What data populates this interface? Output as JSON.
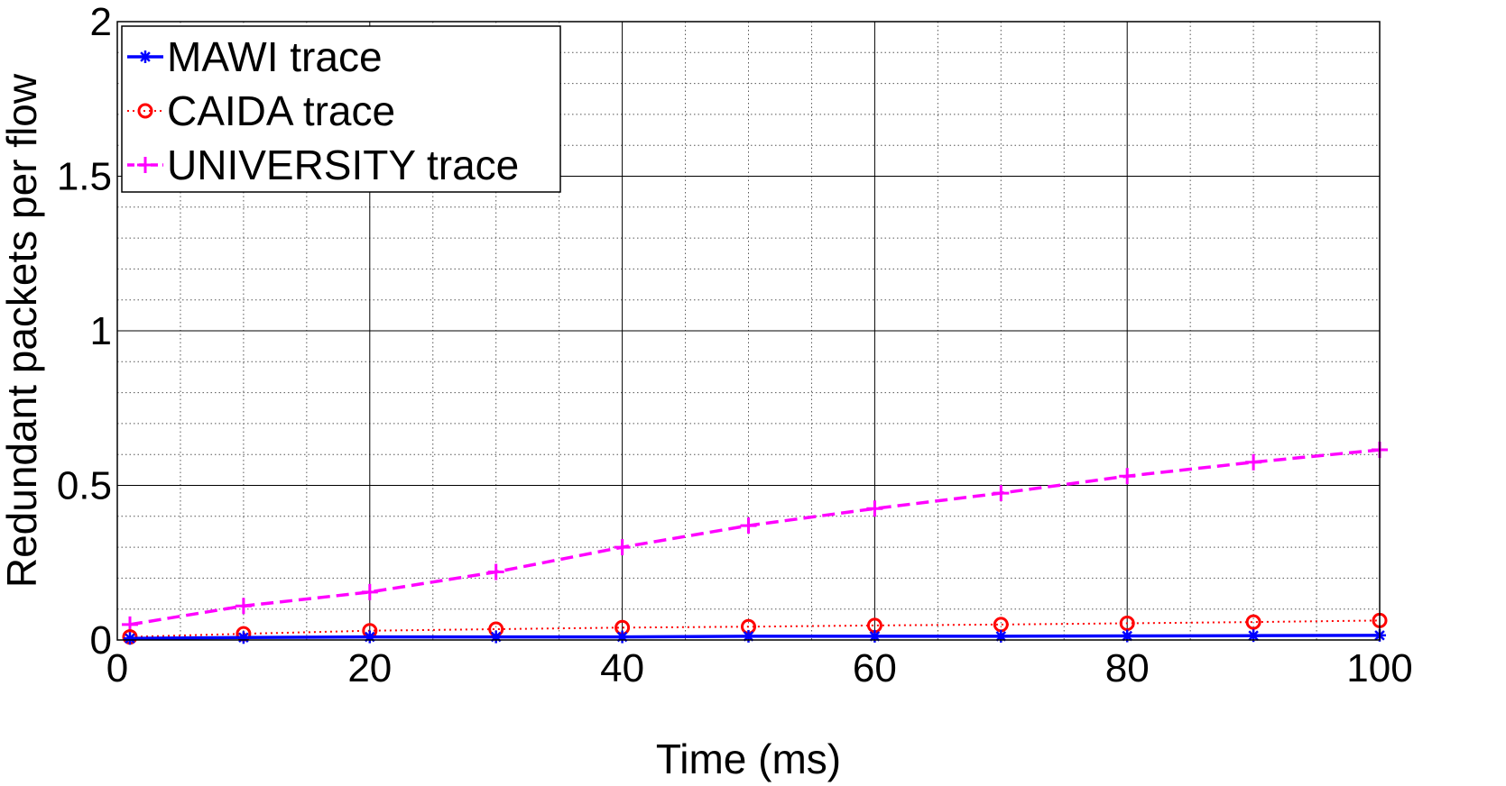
{
  "chart_data": {
    "type": "line",
    "xlabel": "Time (ms)",
    "ylabel": "Redundant packets per flow",
    "xlim": [
      0,
      100
    ],
    "ylim": [
      0,
      2
    ],
    "x_ticks": [
      "0",
      "20",
      "40",
      "60",
      "80",
      "100"
    ],
    "y_ticks": [
      "0",
      "0.5",
      "1",
      "1.5",
      "2"
    ],
    "grid": true,
    "legend_position": "top-left",
    "x": [
      1,
      10,
      20,
      30,
      40,
      50,
      60,
      70,
      80,
      90,
      100
    ],
    "series": [
      {
        "name": "MAWI trace",
        "color": "#0000ff",
        "marker": "asterisk",
        "line": "solid",
        "values": [
          0.005,
          0.008,
          0.01,
          0.01,
          0.01,
          0.012,
          0.012,
          0.012,
          0.013,
          0.014,
          0.015
        ]
      },
      {
        "name": "CAIDA trace",
        "color": "#ff0000",
        "marker": "circle",
        "line": "dotted",
        "values": [
          0.01,
          0.02,
          0.03,
          0.035,
          0.04,
          0.043,
          0.047,
          0.05,
          0.054,
          0.058,
          0.063
        ]
      },
      {
        "name": "UNIVERSITY trace",
        "color": "#ff00ff",
        "marker": "plus",
        "line": "dashed",
        "values": [
          0.05,
          0.11,
          0.155,
          0.22,
          0.3,
          0.37,
          0.425,
          0.475,
          0.53,
          0.575,
          0.615
        ]
      }
    ]
  }
}
